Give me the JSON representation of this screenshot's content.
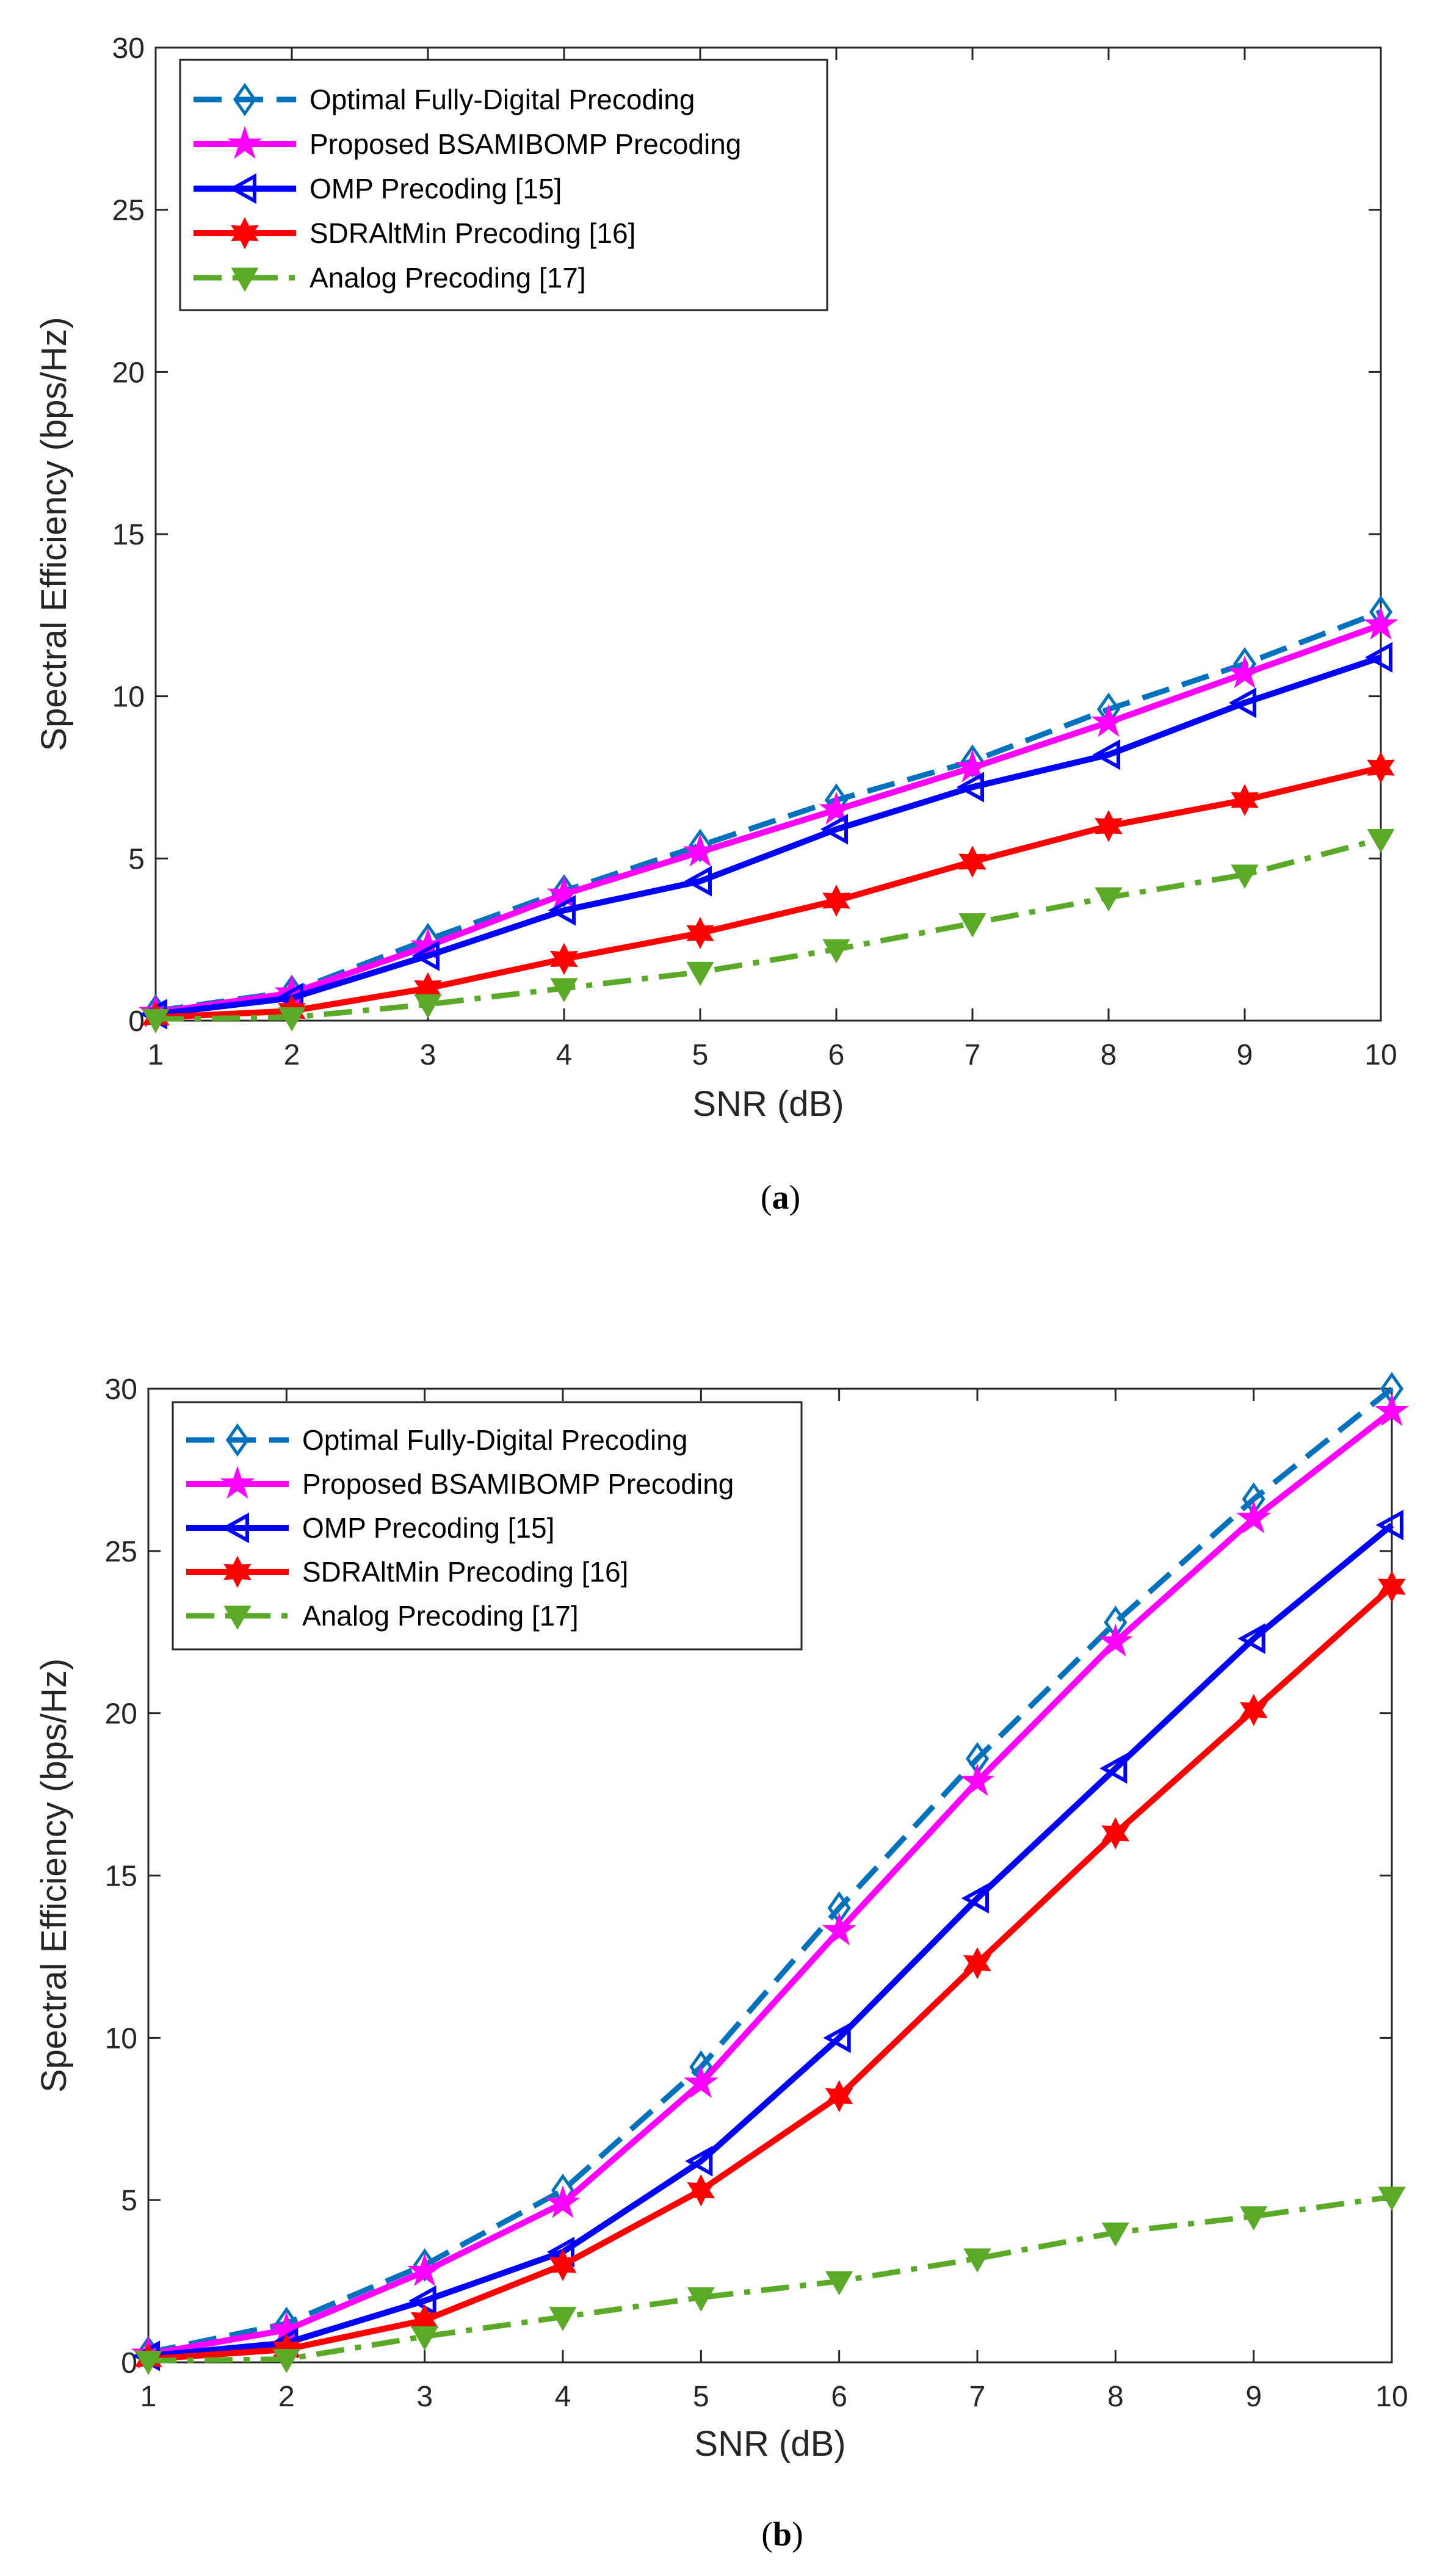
{
  "colors": {
    "optimal": "#0072BD",
    "proposed": "#FF00FF",
    "omp": "#0000FF",
    "sdr": "#FF0000",
    "analog": "#5AAA28"
  },
  "chart_data": [
    {
      "type": "line",
      "panel": "a",
      "caption_pre": "(",
      "caption_letter": "a",
      "caption_post": ")",
      "xlabel": "SNR (dB)",
      "ylabel": "Spectral Efficiency (bps/Hz)",
      "xlim": [
        1,
        10
      ],
      "ylim": [
        0,
        30
      ],
      "xticks": [
        "1",
        "2",
        "3",
        "4",
        "5",
        "6",
        "7",
        "8",
        "9",
        "10"
      ],
      "yticks": [
        "0",
        "5",
        "10",
        "15",
        "20",
        "25",
        "30"
      ],
      "legend_position": "top-left",
      "x": [
        1,
        2,
        3,
        4,
        5,
        6,
        7,
        8,
        9,
        10
      ],
      "series": [
        {
          "name": "Optimal Fully-Digital Precoding",
          "key": "optimal",
          "marker": "diamond",
          "dash": "dashed",
          "values": [
            0.3,
            0.9,
            2.5,
            4.0,
            5.4,
            6.8,
            8.0,
            9.6,
            11.0,
            12.6
          ]
        },
        {
          "name": "Proposed BSAMIBOMP Precoding",
          "key": "proposed",
          "marker": "star",
          "dash": "solid",
          "values": [
            0.25,
            0.85,
            2.3,
            3.9,
            5.2,
            6.5,
            7.8,
            9.2,
            10.7,
            12.2
          ]
        },
        {
          "name": "OMP Precoding [15]",
          "key": "omp",
          "marker": "tri-left",
          "dash": "solid",
          "values": [
            0.2,
            0.7,
            2.0,
            3.4,
            4.3,
            5.9,
            7.2,
            8.2,
            9.8,
            11.2
          ]
        },
        {
          "name": "SDRAltMin Precoding [16]",
          "key": "sdr",
          "marker": "hexagram",
          "dash": "solid",
          "values": [
            0.1,
            0.3,
            1.0,
            1.9,
            2.7,
            3.7,
            4.9,
            6.0,
            6.8,
            7.8
          ]
        },
        {
          "name": "Analog Precoding [17]",
          "key": "analog",
          "marker": "tri-down",
          "dash": "dashdot",
          "values": [
            0.05,
            0.1,
            0.5,
            1.0,
            1.5,
            2.2,
            3.0,
            3.8,
            4.5,
            5.6
          ]
        }
      ]
    },
    {
      "type": "line",
      "panel": "b",
      "caption_pre": "(",
      "caption_letter": "b",
      "caption_post": ")",
      "xlabel": "SNR (dB)",
      "ylabel": "Spectral Efficiency (bps/Hz)",
      "xlim": [
        1,
        10
      ],
      "ylim": [
        0,
        30
      ],
      "xticks": [
        "1",
        "2",
        "3",
        "4",
        "5",
        "6",
        "7",
        "8",
        "9",
        "10"
      ],
      "yticks": [
        "0",
        "5",
        "10",
        "15",
        "20",
        "25",
        "30"
      ],
      "legend_position": "top-left",
      "x": [
        1,
        2,
        3,
        4,
        5,
        6,
        7,
        8,
        9,
        10
      ],
      "series": [
        {
          "name": "Optimal  Fully-Digital Precoding",
          "key": "optimal",
          "marker": "diamond",
          "dash": "dashed",
          "values": [
            0.3,
            1.2,
            3.0,
            5.3,
            9.1,
            14.0,
            18.6,
            22.8,
            26.6,
            30.0
          ]
        },
        {
          "name": "Proposed BSAMIBOMP Precoding",
          "key": "proposed",
          "marker": "star",
          "dash": "solid",
          "values": [
            0.25,
            1.0,
            2.8,
            4.9,
            8.6,
            13.3,
            17.9,
            22.2,
            26.0,
            29.3
          ]
        },
        {
          "name": "OMP Precoding [15]",
          "key": "omp",
          "marker": "tri-left",
          "dash": "solid",
          "values": [
            0.2,
            0.6,
            1.9,
            3.4,
            6.2,
            10.0,
            14.3,
            18.3,
            22.3,
            25.8
          ]
        },
        {
          "name": "SDRAltMin Precoding [16]",
          "key": "sdr",
          "marker": "hexagram",
          "dash": "solid",
          "values": [
            0.1,
            0.4,
            1.3,
            3.0,
            5.3,
            8.2,
            12.3,
            16.3,
            20.1,
            23.9
          ]
        },
        {
          "name": "Analog Precoding [17]",
          "key": "analog",
          "marker": "tri-down",
          "dash": "dashdot",
          "values": [
            0.05,
            0.1,
            0.8,
            1.4,
            2.0,
            2.5,
            3.2,
            4.0,
            4.5,
            5.1
          ]
        }
      ]
    }
  ]
}
